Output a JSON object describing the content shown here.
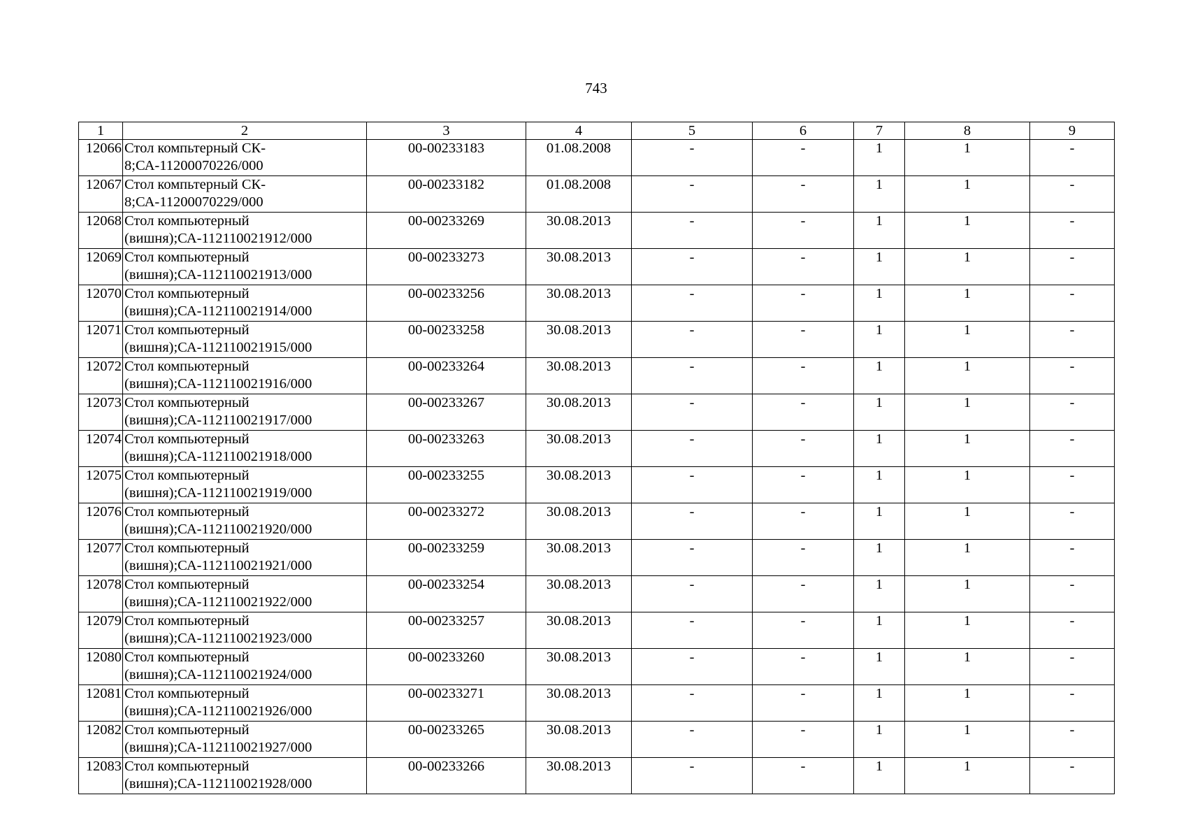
{
  "page_number": "743",
  "table": {
    "headers": [
      "1",
      "2",
      "3",
      "4",
      "5",
      "6",
      "7",
      "8",
      "9"
    ],
    "rows": [
      {
        "n": "12066",
        "name_l1": "Стол компьтерный СК-",
        "name_l2": "8;СА-11200070226/000",
        "inv": "00-00233183",
        "date": "01.08.2008",
        "c5": "-",
        "c6": "-",
        "c7": "1",
        "c8": "1",
        "c9": "-"
      },
      {
        "n": "12067",
        "name_l1": "Стол компьтерный СК-",
        "name_l2": "8;СА-11200070229/000",
        "inv": "00-00233182",
        "date": "01.08.2008",
        "c5": "-",
        "c6": "-",
        "c7": "1",
        "c8": "1",
        "c9": "-"
      },
      {
        "n": "12068",
        "name_l1": "Стол компьютерный",
        "name_l2": "(вишня);СА-112110021912/000",
        "inv": "00-00233269",
        "date": "30.08.2013",
        "c5": "-",
        "c6": "-",
        "c7": "1",
        "c8": "1",
        "c9": "-"
      },
      {
        "n": "12069",
        "name_l1": "Стол компьютерный",
        "name_l2": "(вишня);СА-112110021913/000",
        "inv": "00-00233273",
        "date": "30.08.2013",
        "c5": "-",
        "c6": "-",
        "c7": "1",
        "c8": "1",
        "c9": "-"
      },
      {
        "n": "12070",
        "name_l1": "Стол компьютерный",
        "name_l2": "(вишня);СА-112110021914/000",
        "inv": "00-00233256",
        "date": "30.08.2013",
        "c5": "-",
        "c6": "-",
        "c7": "1",
        "c8": "1",
        "c9": "-"
      },
      {
        "n": "12071",
        "name_l1": "Стол компьютерный",
        "name_l2": "(вишня);СА-112110021915/000",
        "inv": "00-00233258",
        "date": "30.08.2013",
        "c5": "-",
        "c6": "-",
        "c7": "1",
        "c8": "1",
        "c9": "-"
      },
      {
        "n": "12072",
        "name_l1": "Стол компьютерный",
        "name_l2": "(вишня);СА-112110021916/000",
        "inv": "00-00233264",
        "date": "30.08.2013",
        "c5": "-",
        "c6": "-",
        "c7": "1",
        "c8": "1",
        "c9": "-"
      },
      {
        "n": "12073",
        "name_l1": "Стол компьютерный",
        "name_l2": "(вишня);СА-112110021917/000",
        "inv": "00-00233267",
        "date": "30.08.2013",
        "c5": "-",
        "c6": "-",
        "c7": "1",
        "c8": "1",
        "c9": "-"
      },
      {
        "n": "12074",
        "name_l1": "Стол компьютерный",
        "name_l2": "(вишня);СА-112110021918/000",
        "inv": "00-00233263",
        "date": "30.08.2013",
        "c5": "-",
        "c6": "-",
        "c7": "1",
        "c8": "1",
        "c9": "-"
      },
      {
        "n": "12075",
        "name_l1": "Стол компьютерный",
        "name_l2": "(вишня);СА-112110021919/000",
        "inv": "00-00233255",
        "date": "30.08.2013",
        "c5": "-",
        "c6": "-",
        "c7": "1",
        "c8": "1",
        "c9": "-"
      },
      {
        "n": "12076",
        "name_l1": "Стол компьютерный",
        "name_l2": "(вишня);СА-112110021920/000",
        "inv": "00-00233272",
        "date": "30.08.2013",
        "c5": "-",
        "c6": "-",
        "c7": "1",
        "c8": "1",
        "c9": "-"
      },
      {
        "n": "12077",
        "name_l1": "Стол компьютерный",
        "name_l2": "(вишня);СА-112110021921/000",
        "inv": "00-00233259",
        "date": "30.08.2013",
        "c5": "-",
        "c6": "-",
        "c7": "1",
        "c8": "1",
        "c9": "-"
      },
      {
        "n": "12078",
        "name_l1": "Стол компьютерный",
        "name_l2": "(вишня);СА-112110021922/000",
        "inv": "00-00233254",
        "date": "30.08.2013",
        "c5": "-",
        "c6": "-",
        "c7": "1",
        "c8": "1",
        "c9": "-"
      },
      {
        "n": "12079",
        "name_l1": "Стол компьютерный",
        "name_l2": "(вишня);СА-112110021923/000",
        "inv": "00-00233257",
        "date": "30.08.2013",
        "c5": "-",
        "c6": "-",
        "c7": "1",
        "c8": "1",
        "c9": "-"
      },
      {
        "n": "12080",
        "name_l1": "Стол компьютерный",
        "name_l2": "(вишня);СА-112110021924/000",
        "inv": "00-00233260",
        "date": "30.08.2013",
        "c5": "-",
        "c6": "-",
        "c7": "1",
        "c8": "1",
        "c9": "-"
      },
      {
        "n": "12081",
        "name_l1": "Стол компьютерный",
        "name_l2": "(вишня);СА-112110021926/000",
        "inv": "00-00233271",
        "date": "30.08.2013",
        "c5": "-",
        "c6": "-",
        "c7": "1",
        "c8": "1",
        "c9": "-"
      },
      {
        "n": "12082",
        "name_l1": "Стол компьютерный",
        "name_l2": "(вишня);СА-112110021927/000",
        "inv": "00-00233265",
        "date": "30.08.2013",
        "c5": "-",
        "c6": "-",
        "c7": "1",
        "c8": "1",
        "c9": "-"
      },
      {
        "n": "12083",
        "name_l1": "Стол компьютерный",
        "name_l2": "(вишня);СА-112110021928/000",
        "inv": "00-00233266",
        "date": "30.08.2013",
        "c5": "-",
        "c6": "-",
        "c7": "1",
        "c8": "1",
        "c9": "-"
      }
    ]
  }
}
